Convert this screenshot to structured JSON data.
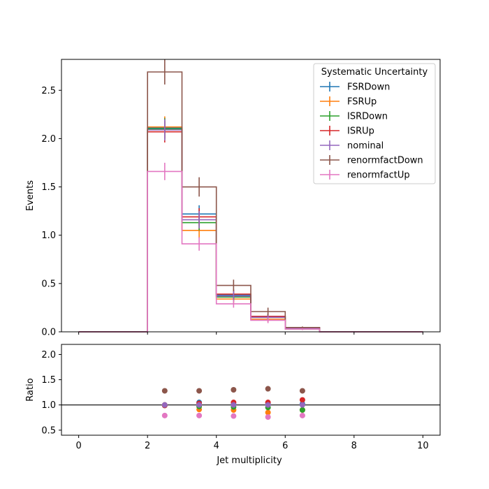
{
  "chart_data": [
    {
      "type": "histogram-step",
      "xlabel": "",
      "ylabel": "Events",
      "xlim": [
        -0.5,
        10.5
      ],
      "ylim": [
        0,
        2.82
      ],
      "xticks": [
        0,
        2,
        4,
        6,
        8,
        10
      ],
      "yticks": [
        "0.0",
        "0.5",
        "1.0",
        "1.5",
        "2.0",
        "2.5"
      ],
      "bin_edges": [
        0,
        1,
        2,
        3,
        4,
        5,
        6,
        7,
        8,
        9,
        10
      ],
      "legend": {
        "title": "Systematic Uncertainty",
        "location": "top-right"
      },
      "series": [
        {
          "name": "FSRDown",
          "color": "#1f77b4",
          "values": [
            0,
            0,
            2.11,
            1.22,
            0.38,
            0.16,
            0.04,
            0,
            0,
            0
          ],
          "errors": [
            0,
            0,
            0.11,
            0.09,
            0.05,
            0.03,
            0.01,
            0,
            0,
            0
          ]
        },
        {
          "name": "FSRUp",
          "color": "#ff7f0e",
          "values": [
            0,
            0,
            2.12,
            1.05,
            0.34,
            0.13,
            0.03,
            0,
            0,
            0
          ],
          "errors": [
            0,
            0,
            0.11,
            0.08,
            0.05,
            0.03,
            0.01,
            0,
            0,
            0
          ]
        },
        {
          "name": "ISRDown",
          "color": "#2ca02c",
          "values": [
            0,
            0,
            2.1,
            1.13,
            0.36,
            0.15,
            0.03,
            0,
            0,
            0
          ],
          "errors": [
            0,
            0,
            0.11,
            0.08,
            0.05,
            0.03,
            0.01,
            0,
            0,
            0
          ]
        },
        {
          "name": "ISRUp",
          "color": "#d62728",
          "values": [
            0,
            0,
            2.07,
            1.19,
            0.39,
            0.16,
            0.04,
            0,
            0,
            0
          ],
          "errors": [
            0,
            0,
            0.11,
            0.09,
            0.05,
            0.03,
            0.01,
            0,
            0,
            0
          ]
        },
        {
          "name": "nominal",
          "color": "#9467bd",
          "values": [
            0,
            0,
            2.09,
            1.16,
            0.37,
            0.15,
            0.035,
            0,
            0,
            0
          ],
          "errors": [
            0,
            0,
            0.11,
            0.09,
            0.05,
            0.03,
            0.01,
            0,
            0,
            0
          ]
        },
        {
          "name": "renormfactDown",
          "color": "#8c564b",
          "values": [
            0,
            0,
            2.69,
            1.5,
            0.48,
            0.21,
            0.045,
            0,
            0,
            0
          ],
          "errors": [
            0,
            0,
            0.13,
            0.1,
            0.06,
            0.04,
            0.01,
            0,
            0,
            0
          ]
        },
        {
          "name": "renormfactUp",
          "color": "#e377c2",
          "values": [
            0,
            0,
            1.66,
            0.91,
            0.29,
            0.12,
            0.028,
            0,
            0,
            0
          ],
          "errors": [
            0,
            0,
            0.09,
            0.07,
            0.04,
            0.03,
            0.01,
            0,
            0,
            0
          ]
        }
      ]
    },
    {
      "type": "scatter",
      "xlabel": "Jet multiplicity",
      "ylabel": "Ratio",
      "xlim": [
        -0.5,
        10.5
      ],
      "ylim": [
        0.4,
        2.2
      ],
      "xticks": [
        0,
        2,
        4,
        6,
        8,
        10
      ],
      "yticks": [
        "0.5",
        "1.0",
        "1.5",
        "2.0"
      ],
      "reference_line": 1.0,
      "x": [
        2.5,
        3.5,
        4.5,
        5.5,
        6.5
      ],
      "series": [
        {
          "name": "FSRDown",
          "color": "#1f77b4",
          "values": [
            1.0,
            1.05,
            1.02,
            1.03,
            1.02
          ]
        },
        {
          "name": "FSRUp",
          "color": "#ff7f0e",
          "values": [
            1.0,
            0.91,
            0.9,
            0.85,
            0.9
          ]
        },
        {
          "name": "ISRDown",
          "color": "#2ca02c",
          "values": [
            0.99,
            0.97,
            0.96,
            0.95,
            0.9
          ]
        },
        {
          "name": "ISRUp",
          "color": "#d62728",
          "values": [
            0.99,
            1.03,
            1.05,
            1.05,
            1.1
          ]
        },
        {
          "name": "nominal",
          "color": "#9467bd",
          "values": [
            1.0,
            1.0,
            1.0,
            1.0,
            1.0
          ]
        },
        {
          "name": "renormfactDown",
          "color": "#8c564b",
          "values": [
            1.28,
            1.28,
            1.3,
            1.32,
            1.28
          ]
        },
        {
          "name": "renormfactUp",
          "color": "#e377c2",
          "values": [
            0.79,
            0.79,
            0.78,
            0.76,
            0.79
          ]
        }
      ]
    }
  ]
}
